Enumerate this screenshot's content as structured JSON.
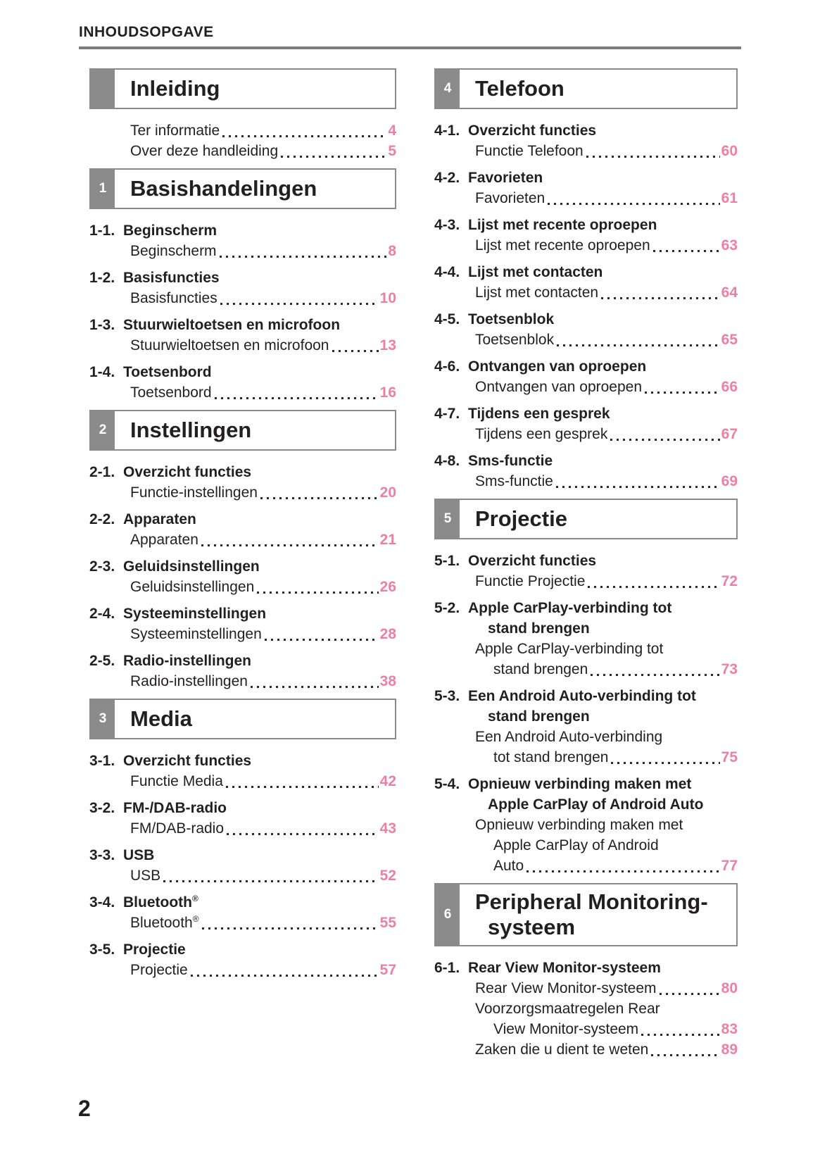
{
  "page": {
    "header_title": "INHOUDSOPGAVE",
    "footer_page_number": "2"
  },
  "colors": {
    "page_number_pink": "#ed7fa3",
    "tab_gray": "#8b8b8b",
    "box_border_gray": "#8a8a8a",
    "rule_gray": "#7d7d7d",
    "text_black": "#231f20"
  },
  "columns": [
    {
      "sections": [
        {
          "tab_number": "",
          "title_lines": [
            "Inleiding"
          ],
          "items": [
            {
              "num": null,
              "heading_lines": null,
              "subs": [
                {
                  "lines": [
                    "Ter informatie"
                  ],
                  "page": "4"
                },
                {
                  "lines": [
                    "Over deze handleiding"
                  ],
                  "page": "5"
                }
              ]
            }
          ]
        },
        {
          "tab_number": "1",
          "title_lines": [
            "Basishandelingen"
          ],
          "items": [
            {
              "num": "1-1.",
              "heading_lines": [
                "Beginscherm"
              ],
              "subs": [
                {
                  "lines": [
                    "Beginscherm"
                  ],
                  "page": "8"
                }
              ]
            },
            {
              "num": "1-2.",
              "heading_lines": [
                "Basisfuncties"
              ],
              "subs": [
                {
                  "lines": [
                    "Basisfuncties"
                  ],
                  "page": "10"
                }
              ]
            },
            {
              "num": "1-3.",
              "heading_lines": [
                "Stuurwieltoetsen en microfoon"
              ],
              "subs": [
                {
                  "lines": [
                    "Stuurwieltoetsen en microfoon"
                  ],
                  "page": "13"
                }
              ]
            },
            {
              "num": "1-4.",
              "heading_lines": [
                "Toetsenbord"
              ],
              "subs": [
                {
                  "lines": [
                    "Toetsenbord"
                  ],
                  "page": "16"
                }
              ]
            }
          ]
        },
        {
          "tab_number": "2",
          "title_lines": [
            "Instellingen"
          ],
          "items": [
            {
              "num": "2-1.",
              "heading_lines": [
                "Overzicht functies"
              ],
              "subs": [
                {
                  "lines": [
                    "Functie-instellingen"
                  ],
                  "page": "20"
                }
              ]
            },
            {
              "num": "2-2.",
              "heading_lines": [
                "Apparaten"
              ],
              "subs": [
                {
                  "lines": [
                    "Apparaten"
                  ],
                  "page": "21"
                }
              ]
            },
            {
              "num": "2-3.",
              "heading_lines": [
                "Geluidsinstellingen"
              ],
              "subs": [
                {
                  "lines": [
                    "Geluidsinstellingen"
                  ],
                  "page": "26"
                }
              ]
            },
            {
              "num": "2-4.",
              "heading_lines": [
                "Systeeminstellingen"
              ],
              "subs": [
                {
                  "lines": [
                    "Systeeminstellingen"
                  ],
                  "page": "28"
                }
              ]
            },
            {
              "num": "2-5.",
              "heading_lines": [
                "Radio-instellingen"
              ],
              "subs": [
                {
                  "lines": [
                    "Radio-instellingen"
                  ],
                  "page": "38"
                }
              ]
            }
          ]
        },
        {
          "tab_number": "3",
          "title_lines": [
            "Media"
          ],
          "items": [
            {
              "num": "3-1.",
              "heading_lines": [
                "Overzicht functies"
              ],
              "subs": [
                {
                  "lines": [
                    "Functie Media"
                  ],
                  "page": "42"
                }
              ]
            },
            {
              "num": "3-2.",
              "heading_lines": [
                "FM-/DAB-radio"
              ],
              "subs": [
                {
                  "lines": [
                    "FM/DAB-radio"
                  ],
                  "page": "43"
                }
              ]
            },
            {
              "num": "3-3.",
              "heading_lines": [
                "USB"
              ],
              "subs": [
                {
                  "lines": [
                    "USB"
                  ],
                  "page": "52"
                }
              ]
            },
            {
              "num": "3-4.",
              "heading_lines": [
                "Bluetooth®"
              ],
              "subs": [
                {
                  "lines": [
                    "Bluetooth®"
                  ],
                  "page": "55"
                }
              ]
            },
            {
              "num": "3-5.",
              "heading_lines": [
                "Projectie"
              ],
              "subs": [
                {
                  "lines": [
                    "Projectie"
                  ],
                  "page": "57"
                }
              ]
            }
          ]
        }
      ]
    },
    {
      "sections": [
        {
          "tab_number": "4",
          "title_lines": [
            "Telefoon"
          ],
          "items": [
            {
              "num": "4-1.",
              "heading_lines": [
                "Overzicht functies"
              ],
              "subs": [
                {
                  "lines": [
                    "Functie Telefoon"
                  ],
                  "page": "60"
                }
              ]
            },
            {
              "num": "4-2.",
              "heading_lines": [
                "Favorieten"
              ],
              "subs": [
                {
                  "lines": [
                    "Favorieten"
                  ],
                  "page": "61"
                }
              ]
            },
            {
              "num": "4-3.",
              "heading_lines": [
                "Lijst met recente oproepen"
              ],
              "subs": [
                {
                  "lines": [
                    "Lijst met recente oproepen"
                  ],
                  "page": "63"
                }
              ]
            },
            {
              "num": "4-4.",
              "heading_lines": [
                "Lijst met contacten"
              ],
              "subs": [
                {
                  "lines": [
                    "Lijst met contacten"
                  ],
                  "page": "64"
                }
              ]
            },
            {
              "num": "4-5.",
              "heading_lines": [
                "Toetsenblok"
              ],
              "subs": [
                {
                  "lines": [
                    "Toetsenblok"
                  ],
                  "page": "65"
                }
              ]
            },
            {
              "num": "4-6.",
              "heading_lines": [
                "Ontvangen van oproepen"
              ],
              "subs": [
                {
                  "lines": [
                    "Ontvangen van oproepen"
                  ],
                  "page": "66"
                }
              ]
            },
            {
              "num": "4-7.",
              "heading_lines": [
                "Tijdens een gesprek"
              ],
              "subs": [
                {
                  "lines": [
                    "Tijdens een gesprek"
                  ],
                  "page": "67"
                }
              ]
            },
            {
              "num": "4-8.",
              "heading_lines": [
                "Sms-functie"
              ],
              "subs": [
                {
                  "lines": [
                    "Sms-functie"
                  ],
                  "page": "69"
                }
              ]
            }
          ]
        },
        {
          "tab_number": "5",
          "title_lines": [
            "Projectie"
          ],
          "items": [
            {
              "num": "5-1.",
              "heading_lines": [
                "Overzicht functies"
              ],
              "subs": [
                {
                  "lines": [
                    "Functie Projectie"
                  ],
                  "page": "72"
                }
              ]
            },
            {
              "num": "5-2.",
              "heading_lines": [
                "Apple CarPlay-verbinding tot",
                "stand brengen"
              ],
              "subs": [
                {
                  "lines": [
                    "Apple CarPlay-verbinding tot",
                    "stand brengen"
                  ],
                  "page": "73"
                }
              ]
            },
            {
              "num": "5-3.",
              "heading_lines": [
                "Een Android Auto-verbinding tot",
                "stand brengen"
              ],
              "subs": [
                {
                  "lines": [
                    "Een Android Auto-verbinding",
                    "tot stand brengen"
                  ],
                  "page": "75"
                }
              ]
            },
            {
              "num": "5-4.",
              "heading_lines": [
                "Opnieuw verbinding maken met",
                "Apple CarPlay of Android Auto"
              ],
              "subs": [
                {
                  "lines": [
                    "Opnieuw verbinding maken met",
                    "Apple CarPlay of Android",
                    "Auto"
                  ],
                  "page": "77"
                }
              ]
            }
          ]
        },
        {
          "tab_number": "6",
          "title_lines": [
            "Peripheral Monitoring-",
            "systeem"
          ],
          "items": [
            {
              "num": "6-1.",
              "heading_lines": [
                "Rear View Monitor-systeem"
              ],
              "subs": [
                {
                  "lines": [
                    "Rear View Monitor-systeem"
                  ],
                  "page": "80"
                },
                {
                  "lines": [
                    "Voorzorgsmaatregelen Rear",
                    "View Monitor-systeem"
                  ],
                  "page": "83"
                },
                {
                  "lines": [
                    "Zaken die u dient te weten"
                  ],
                  "page": "89"
                }
              ]
            }
          ]
        }
      ]
    }
  ]
}
